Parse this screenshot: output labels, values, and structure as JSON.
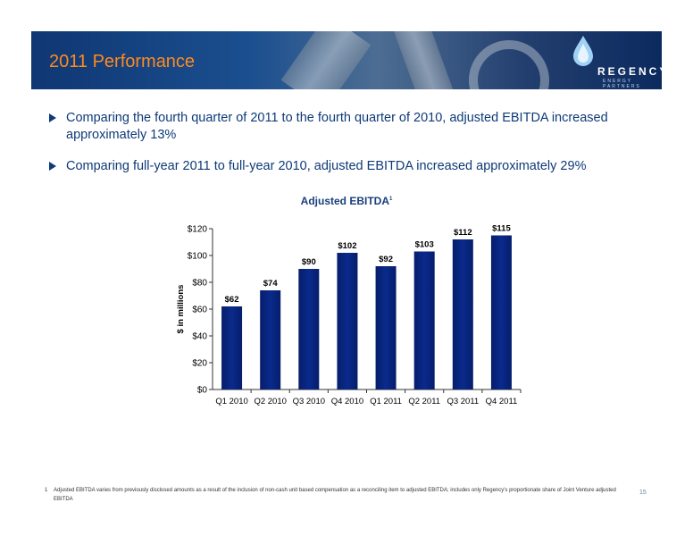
{
  "header": {
    "title": "2011 Performance",
    "logo_name": "REGENCY",
    "logo_tagline": "ENERGY PARTNERS"
  },
  "bullets": [
    "Comparing the fourth quarter of 2011 to the fourth quarter of 2010, adjusted EBITDA increased approximately 13%",
    "Comparing full-year 2011 to full-year 2010, adjusted EBITDA increased approximately 29%"
  ],
  "chart_data": {
    "type": "bar",
    "title": "Adjusted EBITDA",
    "title_sup": "1",
    "ylabel": "$ in millions",
    "xlabel": "",
    "categories": [
      "Q1 2010",
      "Q2 2010",
      "Q3 2010",
      "Q4 2010",
      "Q1 2011",
      "Q2 2011",
      "Q3 2011",
      "Q4 2011"
    ],
    "values": [
      62,
      74,
      90,
      102,
      92,
      103,
      112,
      115
    ],
    "value_labels": [
      "$62",
      "$74",
      "$90",
      "$102",
      "$92",
      "$103",
      "$112",
      "$115"
    ],
    "ylim": [
      0,
      120
    ],
    "yticks": [
      0,
      20,
      40,
      60,
      80,
      100,
      120
    ],
    "ytick_labels": [
      "$0",
      "$20",
      "$40",
      "$60",
      "$80",
      "$100",
      "$120"
    ],
    "legend": "none",
    "grid": false,
    "bar_color": "#0a2a8c"
  },
  "footnote": {
    "number": "1",
    "text": "Adjusted EBITDA varies from previously disclosed amounts as a result of the inclusion of non-cash unit based compensation as a reconciling item to adjusted EBITDA; includes only Regency's proportionate share of Joint Venture adjusted EBITDA"
  },
  "page_number": "15"
}
